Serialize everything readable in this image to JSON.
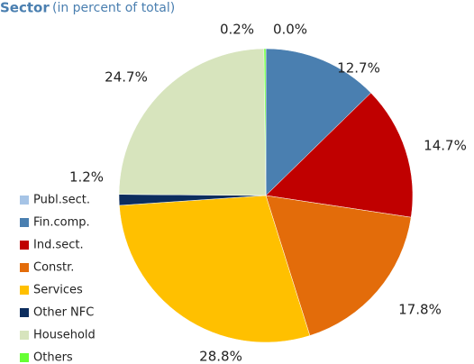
{
  "chart_data": {
    "type": "pie",
    "title": "Sector",
    "subtitle": "(in percent of total)",
    "categories": [
      "Publ.sect.",
      "Fin.comp.",
      "Ind.sect.",
      "Constr.",
      "Services",
      "Other NFC",
      "Household",
      "Others"
    ],
    "values": [
      0.0,
      12.7,
      14.7,
      17.8,
      28.8,
      1.2,
      24.7,
      0.2
    ],
    "value_labels": [
      "0.0%",
      "12.7%",
      "14.7%",
      "17.8%",
      "28.8%",
      "1.2%",
      "24.7%",
      "0.2%"
    ],
    "colors": [
      "#a6c4e6",
      "#4a7fb0",
      "#c00000",
      "#e36c0a",
      "#ffc000",
      "#0c2d5e",
      "#d7e4bd",
      "#66ff33"
    ]
  }
}
